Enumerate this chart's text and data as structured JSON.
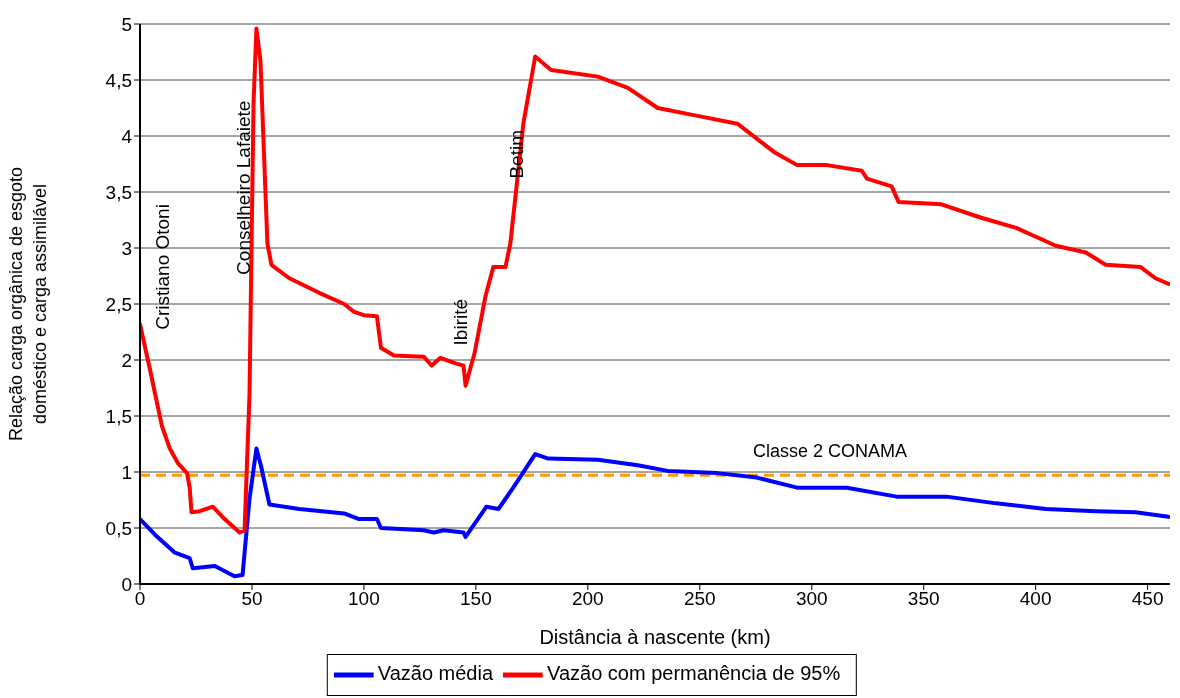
{
  "chart_data": {
    "type": "line",
    "xlabel": "Distância à nascente (km)",
    "ylabel": "Relação carga orgânica de esgoto doméstico e carga assimilável",
    "xlim": [
      0,
      460
    ],
    "xticks": [
      0,
      50,
      100,
      150,
      200,
      250,
      300,
      350,
      400,
      450
    ],
    "ylim": [
      0,
      5
    ],
    "yticks": [
      0,
      {
        "value": 0.5,
        "label": "0,5"
      },
      1,
      {
        "value": 1.5,
        "label": "1,5"
      },
      2,
      {
        "value": 2.5,
        "label": "2,5"
      },
      3,
      {
        "value": 3.5,
        "label": "3,5"
      },
      4,
      {
        "value": 4.5,
        "label": "4,5"
      },
      5
    ],
    "grid": "y",
    "legend": "bottom",
    "marker": "none",
    "line_style": "solid",
    "series": [
      {
        "name": "Vazão média",
        "color": "#0000ff",
        "x": [
          0,
          6.7,
          15.6,
          22.2,
          23.6,
          33.4,
          42.2,
          45.8,
          48.9,
          52,
          54.2,
          57.8,
          71.1,
          91.2,
          97.8,
          105.8,
          107.6,
          126.7,
          131.2,
          135.6,
          144.5,
          145.4,
          154.7,
          160.1,
          166.7,
          176.5,
          182.3,
          204.5,
          222.3,
          235.7,
          257.9,
          275.4,
          293.5,
          315.7,
          337.9,
          360.2,
          382.4,
          404.6,
          426.9,
          444.6,
          459.3
        ],
        "values": [
          0.58,
          0.44,
          0.28,
          0.23,
          0.14,
          0.16,
          0.07,
          0.08,
          0.76,
          1.21,
          1.04,
          0.71,
          0.67,
          0.63,
          0.58,
          0.58,
          0.5,
          0.48,
          0.46,
          0.48,
          0.46,
          0.42,
          0.69,
          0.67,
          0.86,
          1.16,
          1.12,
          1.11,
          1.06,
          1.01,
          0.99,
          0.95,
          0.86,
          0.86,
          0.78,
          0.78,
          0.72,
          0.67,
          0.65,
          0.64,
          0.6
        ]
      },
      {
        "name": "Vazão com permanência de 95%",
        "color": "#ff0000",
        "x": [
          0,
          4.4,
          9.8,
          13.3,
          16.9,
          21,
          22.2,
          23,
          26.7,
          32.5,
          37.8,
          44.5,
          46.7,
          48.9,
          50.7,
          52,
          53.8,
          56.9,
          58.7,
          66.7,
          80,
          91.2,
          95.6,
          100,
          105.8,
          107.6,
          113.4,
          126.7,
          130.3,
          134.2,
          140.9,
          144.5,
          145.4,
          149.4,
          154.3,
          157.8,
          163.2,
          165.4,
          171.2,
          176.5,
          183.6,
          204.5,
          217.9,
          231.2,
          249,
          266.8,
          283.7,
          293.5,
          306.8,
          322.4,
          324.6,
          335.7,
          338.8,
          357.9,
          375.7,
          391.3,
          409,
          422.4,
          431.3,
          446.9,
          453.5,
          459.3
        ],
        "values": [
          2.32,
          1.92,
          1.41,
          1.21,
          1.08,
          0.99,
          0.86,
          0.64,
          0.65,
          0.69,
          0.58,
          0.46,
          0.48,
          1.69,
          4.29,
          4.96,
          4.67,
          3.04,
          2.85,
          2.73,
          2.6,
          2.5,
          2.43,
          2.4,
          2.39,
          2.11,
          2.04,
          2.03,
          1.95,
          2.02,
          1.97,
          1.95,
          1.77,
          2.06,
          2.57,
          2.83,
          2.83,
          3.04,
          4.11,
          4.71,
          4.59,
          4.53,
          4.43,
          4.25,
          4.18,
          4.11,
          3.85,
          3.74,
          3.74,
          3.69,
          3.62,
          3.55,
          3.41,
          3.39,
          3.27,
          3.18,
          3.02,
          2.96,
          2.85,
          2.83,
          2.73,
          2.68
        ]
      }
    ],
    "ref_lines": [
      {
        "axis": "y",
        "value": 0.97,
        "label": "Classe 2 CONAMA",
        "color": "#ff9900",
        "line_style": "dashed"
      }
    ],
    "annotations": [
      "Cristiano Otoni",
      "Conselheiro Lafaiete",
      "Ibirité",
      "Betim"
    ]
  }
}
